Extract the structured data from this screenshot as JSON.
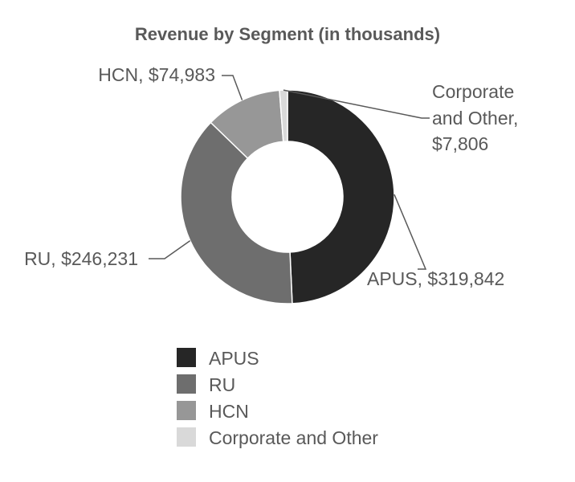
{
  "chart_data": {
    "type": "pie",
    "title": "Revenue by Segment (in thousands)",
    "donut": true,
    "categories": [
      "APUS",
      "RU",
      "HCN",
      "Corporate and Other"
    ],
    "values": [
      319842,
      246231,
      74983,
      7806
    ],
    "data_labels": [
      "APUS, $319,842",
      "RU, $246,231",
      "HCN, $74,983",
      "Corporate and Other, $7,806"
    ],
    "colors": [
      "#262626",
      "#6e6e6e",
      "#979797",
      "#d9d9d9"
    ],
    "legend_position": "bottom"
  }
}
